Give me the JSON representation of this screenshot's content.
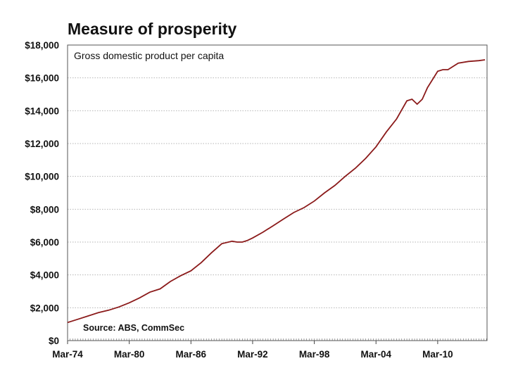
{
  "title": "Measure of prosperity",
  "chart_data": {
    "type": "line",
    "subtitle": "Gross domestic product per capita",
    "source": "Source: ABS, CommSec",
    "xlabel": "",
    "ylabel": "",
    "x_tick_labels": [
      "Mar-74",
      "Mar-80",
      "Mar-86",
      "Mar-92",
      "Mar-98",
      "Mar-04",
      "Mar-10"
    ],
    "x_tick_years": [
      1974,
      1980,
      1986,
      1992,
      1998,
      2004,
      2010
    ],
    "xlim": [
      1974,
      2014.8
    ],
    "y_tick_labels": [
      "$0",
      "$2,000",
      "$4,000",
      "$6,000",
      "$8,000",
      "$10,000",
      "$12,000",
      "$14,000",
      "$16,000",
      "$18,000"
    ],
    "ylim": [
      0,
      18000
    ],
    "y_tick_step": 2000,
    "grid": "horizontal dotted",
    "line_color": "#8b1a1a",
    "series": [
      {
        "x": [
          1974,
          1975,
          1976,
          1977,
          1978,
          1979,
          1980,
          1981,
          1982,
          1983,
          1984,
          1985,
          1986,
          1987,
          1988,
          1989,
          1990,
          1990.5,
          1991,
          1991.5,
          1992,
          1993,
          1994,
          1995,
          1996,
          1997,
          1998,
          1999,
          2000,
          2001,
          2002,
          2003,
          2004,
          2005,
          2006,
          2007,
          2007.5,
          2008,
          2008.5,
          2009,
          2009.5,
          2010,
          2010.5,
          2011,
          2012,
          2013,
          2014,
          2014.6
        ],
        "y": [
          1100,
          1300,
          1500,
          1700,
          1850,
          2050,
          2300,
          2600,
          2950,
          3150,
          3600,
          3950,
          4250,
          4750,
          5350,
          5900,
          6050,
          6000,
          6000,
          6100,
          6250,
          6600,
          7000,
          7400,
          7800,
          8100,
          8500,
          9000,
          9450,
          10000,
          10500,
          11100,
          11800,
          12700,
          13500,
          14600,
          14700,
          14400,
          14700,
          15400,
          15900,
          16400,
          16500,
          16500,
          16900,
          17000,
          17050,
          17100
        ]
      }
    ]
  }
}
